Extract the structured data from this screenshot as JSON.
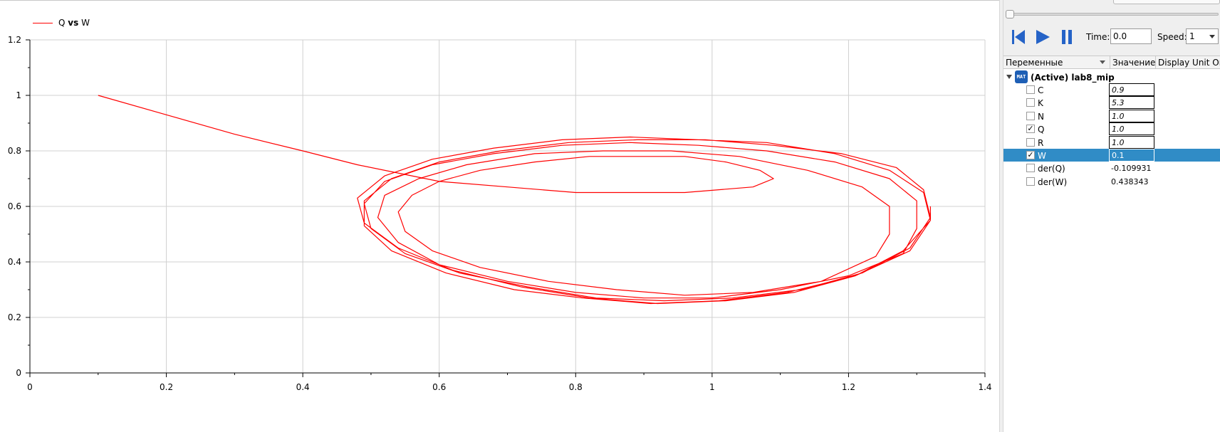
{
  "legend": {
    "label_y": "Q",
    "label_vs": "vs",
    "label_x": "W"
  },
  "colors": {
    "series": "#ff0000",
    "grid": "#d0d0d0",
    "selection": "#308cc6",
    "accent_blue": "#1e5fb5"
  },
  "chart_data": {
    "type": "line",
    "xlim": [
      0,
      1.4
    ],
    "ylim": [
      0,
      1.2
    ],
    "x_ticks": [
      "0",
      "0.2",
      "0.4",
      "0.6",
      "0.8",
      "1",
      "1.2",
      "1.4"
    ],
    "y_ticks": [
      "0",
      "0.2",
      "0.4",
      "0.6",
      "0.8",
      "1",
      "1.2"
    ],
    "grid": true,
    "legend_position": "top-left",
    "series": [
      {
        "name": "Q vs W",
        "x": [
          0.1,
          0.2,
          0.3,
          0.4,
          0.48,
          0.56,
          0.6,
          0.7,
          0.8,
          0.9,
          0.96,
          1.06,
          1.09,
          1.07,
          1.02,
          0.96,
          0.9,
          0.82,
          0.74,
          0.66,
          0.6,
          0.56,
          0.54,
          0.55,
          0.59,
          0.66,
          0.76,
          0.86,
          0.96,
          1.06,
          1.16,
          1.24,
          1.26,
          1.26,
          1.22,
          1.14,
          1.04,
          0.94,
          0.84,
          0.74,
          0.64,
          0.57,
          0.52,
          0.51,
          0.54,
          0.6,
          0.7,
          0.8,
          0.9,
          1.0,
          1.1,
          1.2,
          1.28,
          1.3,
          1.3,
          1.26,
          1.18,
          1.08,
          0.98,
          0.88,
          0.78,
          0.68,
          0.59,
          0.52,
          0.49,
          0.5,
          0.55,
          0.63,
          0.73,
          0.83,
          0.93,
          1.03,
          1.13,
          1.22,
          1.29,
          1.32,
          1.31,
          1.27,
          1.19,
          1.09,
          0.99,
          0.89,
          0.79,
          0.69,
          0.6,
          0.53,
          0.49,
          0.49,
          0.53,
          0.61,
          0.71,
          0.81,
          0.91,
          1.01,
          1.11,
          1.21,
          1.29,
          1.32,
          1.31,
          1.26,
          1.18,
          1.08,
          0.98,
          0.88,
          0.78,
          0.68,
          0.59,
          0.52,
          0.48,
          0.49,
          0.54,
          0.62,
          0.72,
          0.82,
          0.92,
          1.02,
          1.12,
          1.21,
          1.28,
          1.32,
          1.32
        ],
        "y": [
          1.0,
          0.93,
          0.86,
          0.8,
          0.75,
          0.71,
          0.69,
          0.67,
          0.65,
          0.65,
          0.65,
          0.67,
          0.7,
          0.73,
          0.76,
          0.78,
          0.78,
          0.78,
          0.76,
          0.73,
          0.69,
          0.64,
          0.58,
          0.51,
          0.44,
          0.38,
          0.33,
          0.3,
          0.28,
          0.29,
          0.33,
          0.42,
          0.5,
          0.6,
          0.67,
          0.73,
          0.78,
          0.8,
          0.8,
          0.79,
          0.75,
          0.7,
          0.64,
          0.56,
          0.47,
          0.39,
          0.33,
          0.29,
          0.27,
          0.27,
          0.3,
          0.35,
          0.43,
          0.52,
          0.62,
          0.7,
          0.76,
          0.8,
          0.82,
          0.83,
          0.82,
          0.79,
          0.75,
          0.69,
          0.61,
          0.52,
          0.43,
          0.36,
          0.31,
          0.27,
          0.26,
          0.27,
          0.3,
          0.36,
          0.45,
          0.56,
          0.66,
          0.74,
          0.79,
          0.82,
          0.84,
          0.84,
          0.83,
          0.8,
          0.76,
          0.7,
          0.62,
          0.53,
          0.44,
          0.36,
          0.3,
          0.27,
          0.25,
          0.26,
          0.29,
          0.35,
          0.44,
          0.55,
          0.65,
          0.73,
          0.79,
          0.83,
          0.84,
          0.85,
          0.84,
          0.81,
          0.77,
          0.71,
          0.63,
          0.54,
          0.45,
          0.37,
          0.31,
          0.27,
          0.25,
          0.26,
          0.29,
          0.35,
          0.44,
          0.55,
          0.6
        ]
      }
    ]
  },
  "controls": {
    "time_label": "Time:",
    "time_value": "0.0",
    "speed_label": "Speed:",
    "speed_value": "1"
  },
  "tree": {
    "headers": {
      "vars": "Переменные",
      "value": "Значение",
      "unit": "Display Unit Or"
    },
    "root_label": "(Active) lab8_mip",
    "root_icon": "mat-file-icon",
    "items": [
      {
        "name": "C",
        "value": "0.9",
        "checked": false,
        "editable": true
      },
      {
        "name": "K",
        "value": "5.3",
        "checked": false,
        "editable": true
      },
      {
        "name": "N",
        "value": "1.0",
        "checked": false,
        "editable": true
      },
      {
        "name": "Q",
        "value": "1.0",
        "checked": true,
        "editable": true
      },
      {
        "name": "R",
        "value": "1.0",
        "checked": false,
        "editable": true
      },
      {
        "name": "W",
        "value": "0.1",
        "checked": true,
        "editable": true,
        "selected": true
      },
      {
        "name": "der(Q)",
        "value": "-0.109931",
        "checked": false,
        "editable": false
      },
      {
        "name": "der(W)",
        "value": "0.438343",
        "checked": false,
        "editable": false
      }
    ]
  }
}
